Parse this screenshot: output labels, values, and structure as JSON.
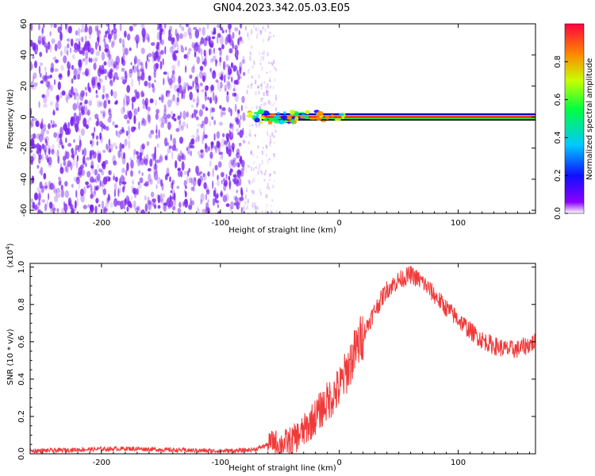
{
  "title": "GN04.2023.342.05.03.E05",
  "colors": {
    "snr_line": "#f03a3a",
    "noise": "#7a22f0",
    "plot_frame": "#000000",
    "colorbar": [
      "#8a00ff",
      "#1010ff",
      "#00c8ff",
      "#00ff40",
      "#c8ff00",
      "#ff8800",
      "#ff0040"
    ]
  },
  "chart_data": [
    {
      "type": "heatmap",
      "title": "GN04.2023.342.05.03.E05",
      "xlabel": "Height of straight line (km)",
      "ylabel": "Frequency (Hz)",
      "xlim": [
        -260,
        165
      ],
      "ylim": [
        -62,
        60
      ],
      "xticks": [
        -200,
        -100,
        0,
        100
      ],
      "yticks": [
        -60,
        -40,
        -20,
        0,
        20,
        40,
        60
      ],
      "ytick_labels": [
        "-60",
        "-40",
        "-20",
        "0",
        "20",
        "40",
        "60"
      ],
      "colorbar": {
        "label": "Normalized spectral amplitude",
        "range": [
          0.0,
          1.0
        ],
        "ticks": [
          "0.0",
          "0.2",
          "0.4",
          "0.6",
          "0.8"
        ]
      },
      "features": {
        "noise_region_x": [
          -260,
          -80
        ],
        "signal_band_x": [
          -80,
          165
        ],
        "signal_band_freq": 0
      }
    },
    {
      "type": "line",
      "xlabel": "Height of straight line (km)",
      "ylabel": "SNR (10 * v/v)",
      "y_multiplier": "(x10^4)",
      "xlim": [
        -260,
        165
      ],
      "ylim": [
        0.0,
        1.02
      ],
      "xticks": [
        -200,
        -100,
        0,
        100
      ],
      "yticks": [
        "0.0",
        "0.2",
        "0.4",
        "0.6",
        "0.8",
        "1.0"
      ],
      "series": [
        {
          "x": [
            -260,
            -240,
            -220,
            -200,
            -180,
            -160,
            -140,
            -120,
            -100,
            -80,
            -70,
            -60,
            -55,
            -50,
            -40,
            -30,
            -20,
            -10,
            0,
            10,
            20,
            30,
            40,
            50,
            60,
            70,
            80,
            90,
            100,
            110,
            120,
            130,
            140,
            150,
            165
          ],
          "values": [
            0.015,
            0.018,
            0.022,
            0.025,
            0.028,
            0.025,
            0.02,
            0.018,
            0.015,
            0.018,
            0.025,
            0.05,
            0.07,
            0.05,
            0.07,
            0.12,
            0.2,
            0.28,
            0.35,
            0.5,
            0.64,
            0.77,
            0.88,
            0.93,
            0.96,
            0.92,
            0.85,
            0.78,
            0.72,
            0.66,
            0.61,
            0.58,
            0.56,
            0.56,
            0.6
          ]
        }
      ]
    }
  ]
}
